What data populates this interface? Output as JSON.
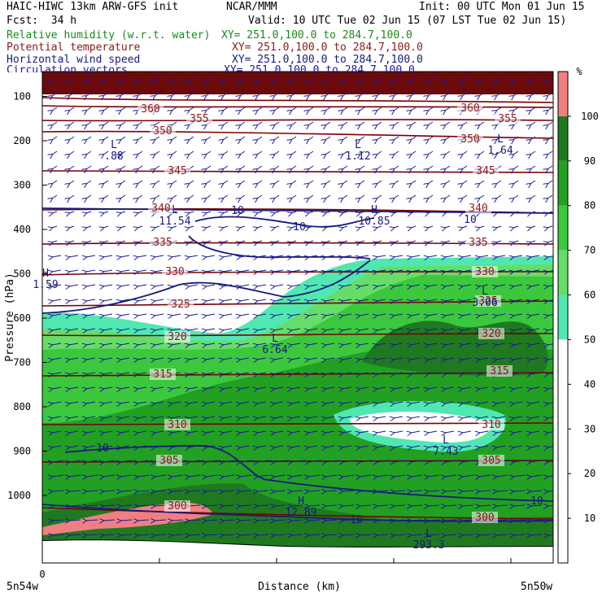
{
  "header": {
    "model": "HAIC-HIWC 13km ARW-GFS init",
    "org": "NCAR/MMM",
    "init": "Init: 00 UTC Mon 01 Jun 15",
    "fcst": "Fcst:  34 h",
    "valid": "Valid: 10 UTC Tue 02 Jun 15 (07 LST Tue 02 Jun 15)"
  },
  "fields": [
    {
      "name": "Relative humidity (w.r.t. water)",
      "xy": "XY= 251.0,100.0 to 284.7,100.0",
      "color": "#1a8a1a"
    },
    {
      "name": "Potential temperature",
      "xy": "XY= 251.0,100.0 to 284.7,100.0",
      "color": "#8b1a1a"
    },
    {
      "name": "Horizontal wind speed",
      "xy": "XY= 251.0,100.0 to 284.7,100.0",
      "color": "#1a1a7a"
    },
    {
      "name": "Circulation vectors",
      "xy": "XY= 251.0,100.0 to 284.7,100.0",
      "color": "#1a1a9a"
    }
  ],
  "chart_data": {
    "type": "cross-section",
    "ylabel": "Pressure (hPa)",
    "xlabel": "Distance (km)",
    "y_ticks": [
      100,
      200,
      300,
      400,
      500,
      600,
      700,
      800,
      900,
      1000
    ],
    "ylim": [
      1100,
      0
    ],
    "x_tick_label": "0",
    "x_left_label": "5n54w",
    "x_right_label": "5n50w",
    "colorbar": {
      "unit": "%",
      "levels": [
        10,
        20,
        30,
        40,
        50,
        60,
        70,
        80,
        90,
        100
      ],
      "bands": [
        {
          "from": 100,
          "to": 110,
          "color": "#f08080"
        },
        {
          "from": 90,
          "to": 100,
          "color": "#1f7a1f"
        },
        {
          "from": 80,
          "to": 90,
          "color": "#22a022"
        },
        {
          "from": 70,
          "to": 80,
          "color": "#3cc83c"
        },
        {
          "from": 60,
          "to": 70,
          "color": "#66dd66"
        },
        {
          "from": 50,
          "to": 60,
          "color": "#50e8b0"
        },
        {
          "from": 0,
          "to": 50,
          "color": "#ffffff"
        }
      ]
    },
    "theta_labels": [
      "360",
      "355",
      "350",
      "345",
      "340",
      "335",
      "330",
      "325",
      "320",
      "315",
      "310",
      "305",
      "300",
      "360",
      "355",
      "350",
      "345",
      "340",
      "335",
      "330",
      "325",
      "320",
      "315",
      "310",
      "305",
      "300"
    ],
    "wind_labels": [
      "10",
      "10",
      "10",
      "10",
      "10",
      "10"
    ],
    "extrema": [
      {
        "mark": "L",
        "value": ".88"
      },
      {
        "mark": "L",
        "value": "1.12"
      },
      {
        "mark": "L",
        "value": "1.64"
      },
      {
        "mark": "L",
        "value": "11.54"
      },
      {
        "mark": "H",
        "value": "10.85"
      },
      {
        "mark": "H",
        "value": "1.59"
      },
      {
        "mark": "L",
        "value": "3.06"
      },
      {
        "mark": "L",
        "value": "6.64"
      },
      {
        "mark": "L",
        "value": "7.43"
      },
      {
        "mark": "H",
        "value": "12.89"
      },
      {
        "mark": "L",
        "value": "293.3"
      }
    ]
  }
}
